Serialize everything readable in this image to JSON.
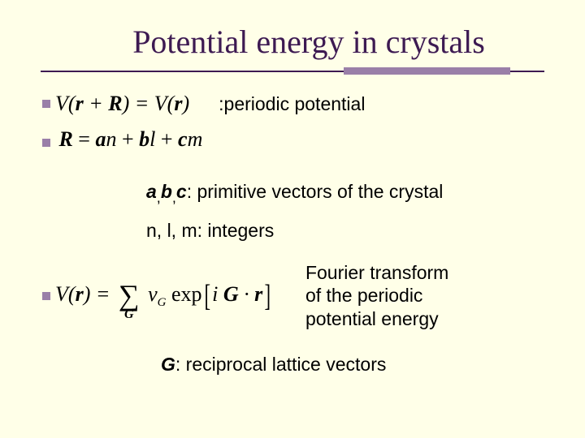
{
  "title": "Potential energy in crystals",
  "colors": {
    "background": "#ffffe8",
    "title": "#3d1a52",
    "rule": "#3d1a52",
    "accent": "#9a7fa8",
    "text": "#000000"
  },
  "typography": {
    "title_font": "Times New Roman",
    "title_size_pt": 40,
    "body_font": "Arial",
    "body_size_pt": 23,
    "equation_font": "Times New Roman",
    "equation_size_pt": 26
  },
  "equation1": {
    "display": "V(r + R) = V(r)",
    "latex": "V(\\mathbf{r}+\\mathbf{R})=V(\\mathbf{r})",
    "annotation": ":periodic potential"
  },
  "equation2": {
    "display": "R = a n + b l + c m",
    "latex": "\\mathbf{R}=\\mathbf{a}n+\\mathbf{b}l+\\mathbf{c}m"
  },
  "descriptions": {
    "primitive_prefix": "a",
    "primitive_mid1": "b",
    "primitive_mid2": "c",
    "primitive_suffix": ": primitive vectors of the crystal",
    "integers": "n, l, m: integers",
    "fourier": "Fourier transform of the periodic potential energy",
    "reciprocal_prefix": "G",
    "reciprocal_suffix": ": reciprocal lattice vectors"
  },
  "equation3": {
    "display": "V(r) = Σ_G v_G exp[i G · r]",
    "latex": "V(\\mathbf{r})=\\sum_{\\mathbf{G}} v_{G}\\,\\exp[i\\,\\mathbf{G}\\cdot\\mathbf{r}]"
  }
}
